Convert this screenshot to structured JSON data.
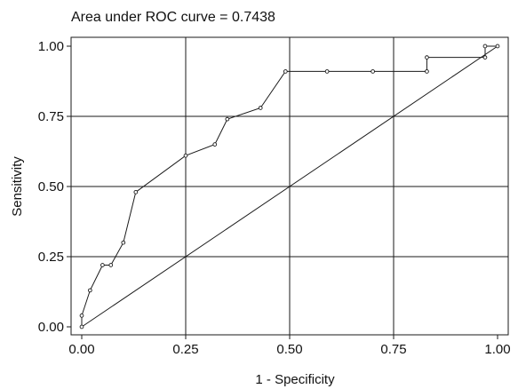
{
  "chart_data": {
    "type": "line",
    "title": "Area under ROC curve = 0.7438",
    "xlabel": "1 - Specificity",
    "ylabel": "Sensitivity",
    "xlim": [
      0,
      1
    ],
    "ylim": [
      0,
      1
    ],
    "grid": true,
    "x_ticks": [
      "0.00",
      "0.25",
      "0.50",
      "0.75",
      "1.00"
    ],
    "y_ticks": [
      "0.00",
      "0.25",
      "0.50",
      "0.75",
      "1.00"
    ],
    "series": [
      {
        "x": [
          0.0,
          0.0,
          0.02,
          0.05,
          0.07,
          0.1,
          0.13,
          0.25,
          0.32,
          0.35,
          0.43,
          0.49,
          0.59,
          0.7,
          0.83,
          0.83,
          0.97,
          0.97,
          1.0
        ],
        "y": [
          0.0,
          0.04,
          0.13,
          0.22,
          0.22,
          0.3,
          0.48,
          0.61,
          0.65,
          0.74,
          0.78,
          0.91,
          0.91,
          0.91,
          0.91,
          0.96,
          0.96,
          1.0,
          1.0
        ]
      },
      {
        "x": [
          0,
          1
        ],
        "y": [
          0,
          1
        ]
      }
    ]
  }
}
